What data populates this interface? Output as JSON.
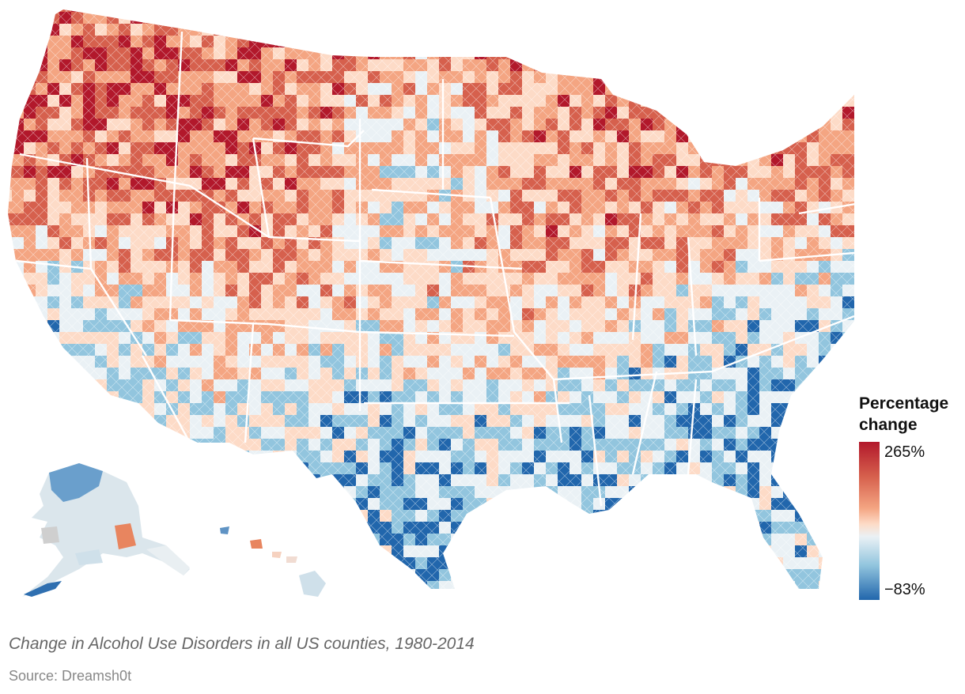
{
  "caption": "Change in Alcohol Use Disorders in all US counties, 1980-2014",
  "source": "Source: Dreamsh0t",
  "legend": {
    "title_line1": "Percentage",
    "title_line2": "change",
    "max_label": "265%",
    "min_label": "−83%",
    "colors": [
      "#b2182b",
      "#d6604d",
      "#f4a582",
      "#fddbc7",
      "#eaf1f5",
      "#92c5de",
      "#2166ac"
    ]
  },
  "map": {
    "type": "choropleth",
    "region": "US counties",
    "value_range": [
      -83,
      265
    ],
    "unit": "%"
  }
}
